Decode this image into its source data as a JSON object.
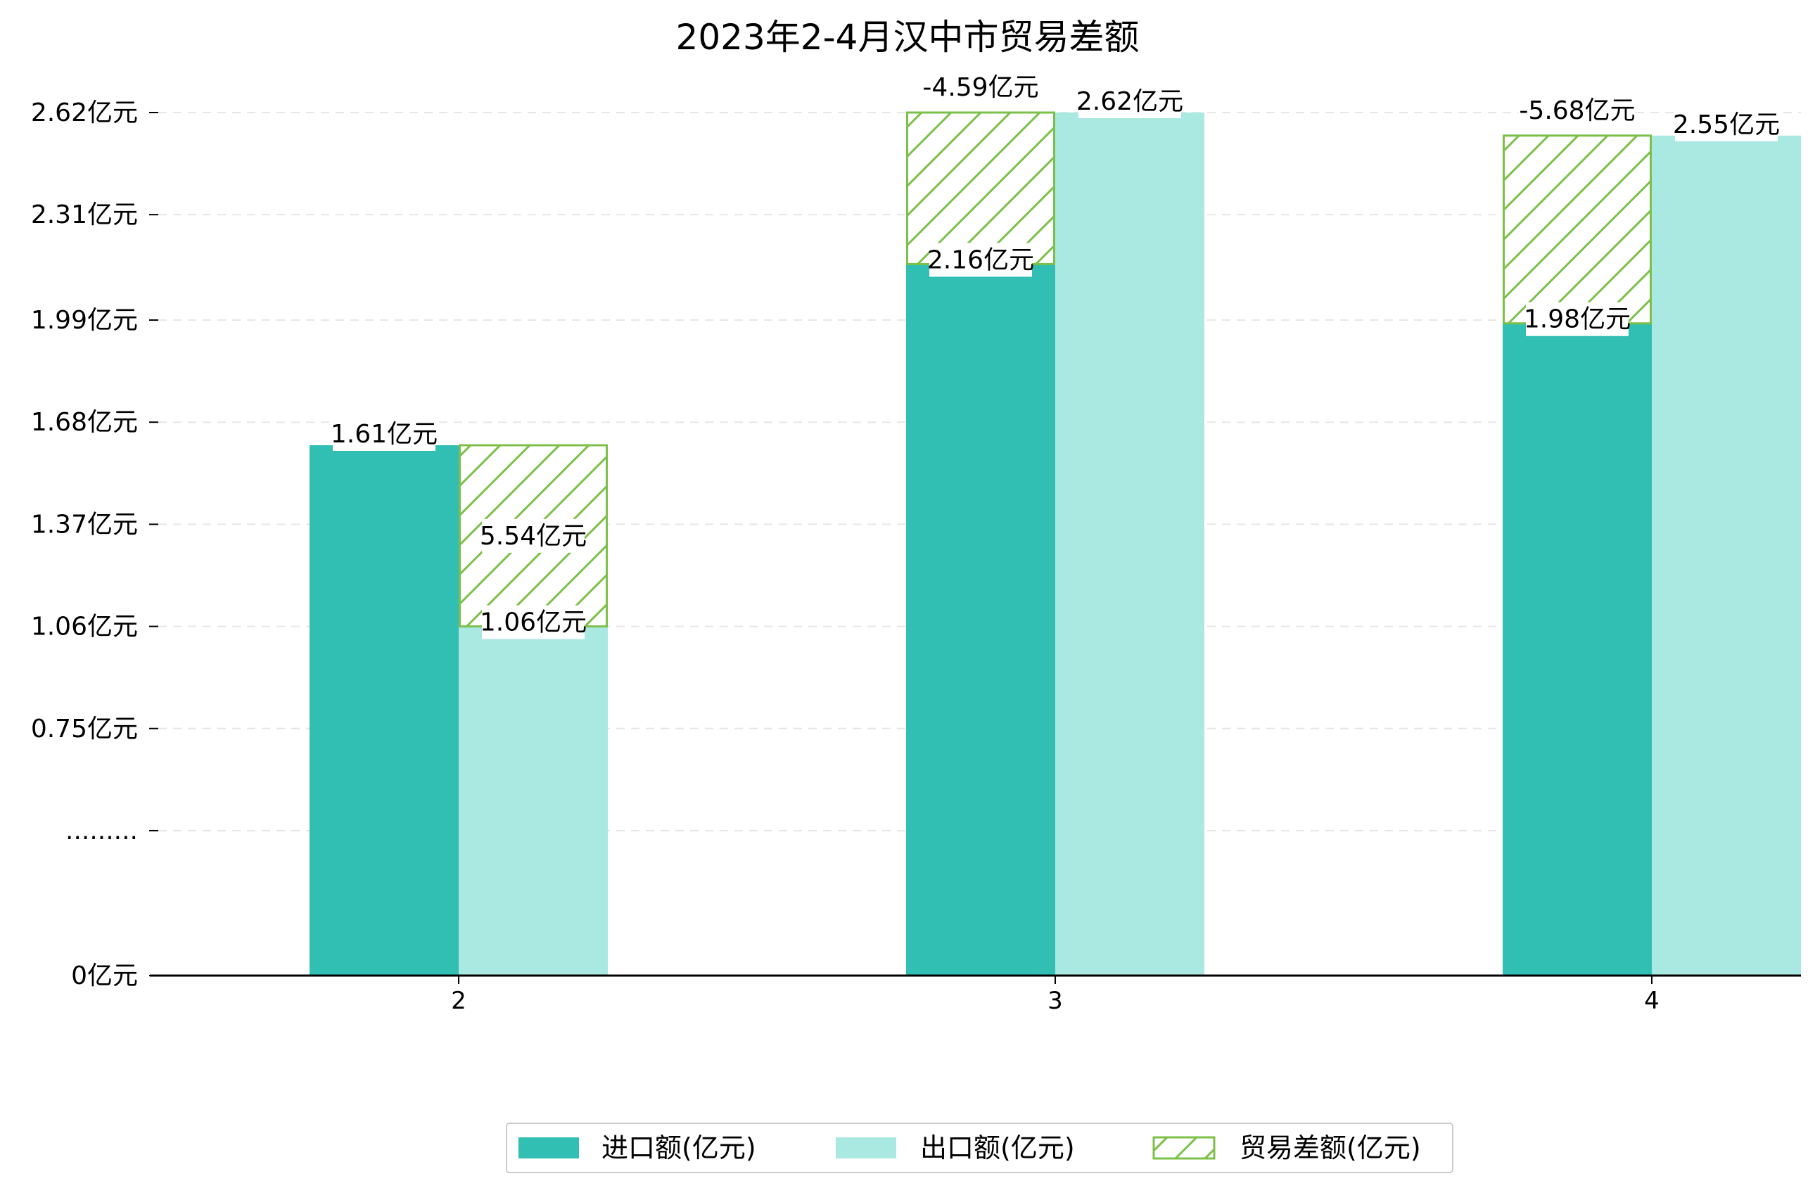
{
  "chart_data": {
    "type": "bar",
    "title": "2023年2-4月汉中市贸易差额",
    "categories": [
      "2",
      "3",
      "4"
    ],
    "series": [
      {
        "name": "进口额(亿元)",
        "values": [
          1.61,
          2.16,
          1.98
        ],
        "color": "#31BFB3",
        "labels": [
          "1.61亿元",
          "2.16亿元",
          "1.98亿元"
        ]
      },
      {
        "name": "出口额(亿元)",
        "values": [
          1.06,
          2.62,
          2.55
        ],
        "color": "#AAE8E2",
        "labels": [
          "1.06亿元",
          "2.62亿元",
          "2.55亿元"
        ]
      },
      {
        "name": "贸易差额(亿元)",
        "values": [
          5.54,
          -4.59,
          -5.68
        ],
        "color": "#7CC04A",
        "hatch": true,
        "labels": [
          "5.54亿元",
          "-4.59亿元",
          "-5.68亿元"
        ]
      }
    ],
    "yticks": [
      {
        "value": 0,
        "label": "0亿元"
      },
      {
        "value": 0.44,
        "label": "........."
      },
      {
        "value": 0.75,
        "label": "0.75亿元"
      },
      {
        "value": 1.06,
        "label": "1.06亿元"
      },
      {
        "value": 1.37,
        "label": "1.37亿元"
      },
      {
        "value": 1.68,
        "label": "1.68亿元"
      },
      {
        "value": 1.99,
        "label": "1.99亿元"
      },
      {
        "value": 2.31,
        "label": "2.31亿元"
      },
      {
        "value": 2.62,
        "label": "2.62亿元"
      }
    ],
    "ylim": [
      0,
      2.62
    ],
    "grid": true,
    "legend_position": "bottom-center",
    "xlabel": "",
    "ylabel": ""
  }
}
